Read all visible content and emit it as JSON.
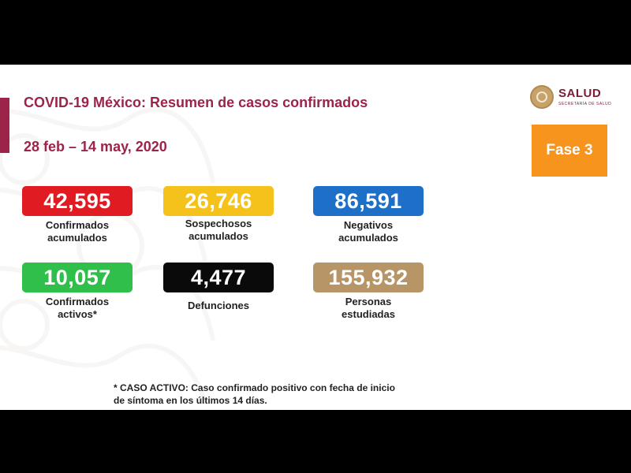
{
  "header": {
    "title": "COVID-19 México: Resumen de casos confirmados",
    "date_range": "28 feb – 14 may, 2020"
  },
  "logo": {
    "name": "SALUD",
    "subtitle": "SECRETARÍA DE SALUD"
  },
  "phase": {
    "label": "Fase 3",
    "color": "#f7941d"
  },
  "stats": [
    {
      "value": "42,595",
      "label_line1": "Confirmados",
      "label_line2": "acumulados",
      "color": "#e01b22"
    },
    {
      "value": "26,746",
      "label_line1": "Sospechosos",
      "label_line2": "acumulados",
      "color": "#f5c21b"
    },
    {
      "value": "86,591",
      "label_line1": "Negativos",
      "label_line2": "acumulados",
      "color": "#1e6fc8"
    },
    {
      "value": "10,057",
      "label_line1": "Confirmados",
      "label_line2": "activos*",
      "color": "#2fbf4a"
    },
    {
      "value": "4,477",
      "label_line1": "Defunciones",
      "label_line2": "",
      "color": "#0a0a0a"
    },
    {
      "value": "155,932",
      "label_line1": "Personas",
      "label_line2": "estudiadas",
      "color": "#b79566"
    }
  ],
  "footnote": {
    "line1": "* CASO ACTIVO: Caso confirmado positivo con fecha de inicio",
    "line2": "de síntoma en los últimos 14 días."
  },
  "colors": {
    "accent": "#9d2449",
    "background_frame": "#000000"
  }
}
